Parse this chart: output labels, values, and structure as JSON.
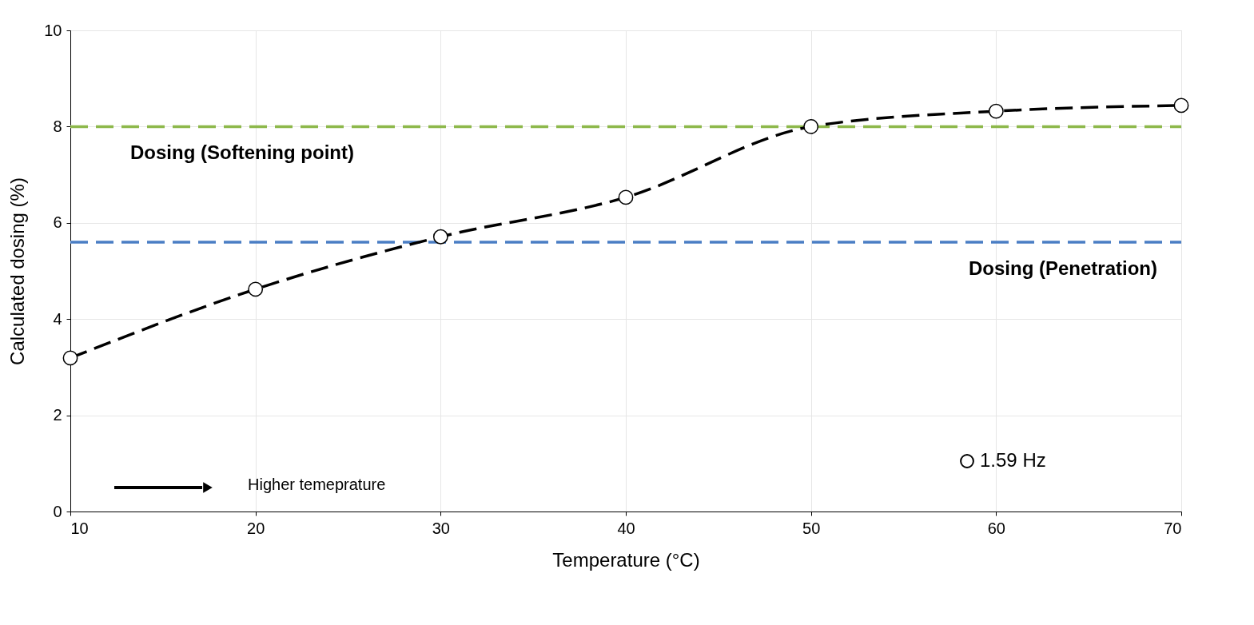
{
  "chart_data": {
    "type": "line",
    "xlabel": "Temperature (°C)",
    "ylabel": "Calculated dosing (%)",
    "x": [
      10,
      20,
      30,
      40,
      50,
      60,
      70
    ],
    "series": [
      {
        "name": "1.59 Hz",
        "color": "#000000",
        "values": [
          3.19,
          4.62,
          5.71,
          6.53,
          8.0,
          8.32,
          8.44
        ]
      }
    ],
    "xlim": [
      10,
      70
    ],
    "xticks": [
      10,
      20,
      30,
      40,
      50,
      60,
      70
    ],
    "ylim": [
      0,
      10
    ],
    "yticks": [
      0,
      2,
      4,
      6,
      8,
      10
    ],
    "ref_lines": [
      {
        "axis": "y",
        "value": 8.0,
        "label": "Dosing (Softening point)",
        "color": "#8db84a",
        "line_style": "dashed"
      },
      {
        "axis": "y",
        "value": 5.6,
        "label": "Dosing (Penetration)",
        "color": "#4a7ec4",
        "line_style": "dashed"
      }
    ],
    "annotations": [
      "Higher temeprature"
    ],
    "marker": "circle",
    "line_style": "dashed",
    "grid": true,
    "legend": "bottom right"
  }
}
